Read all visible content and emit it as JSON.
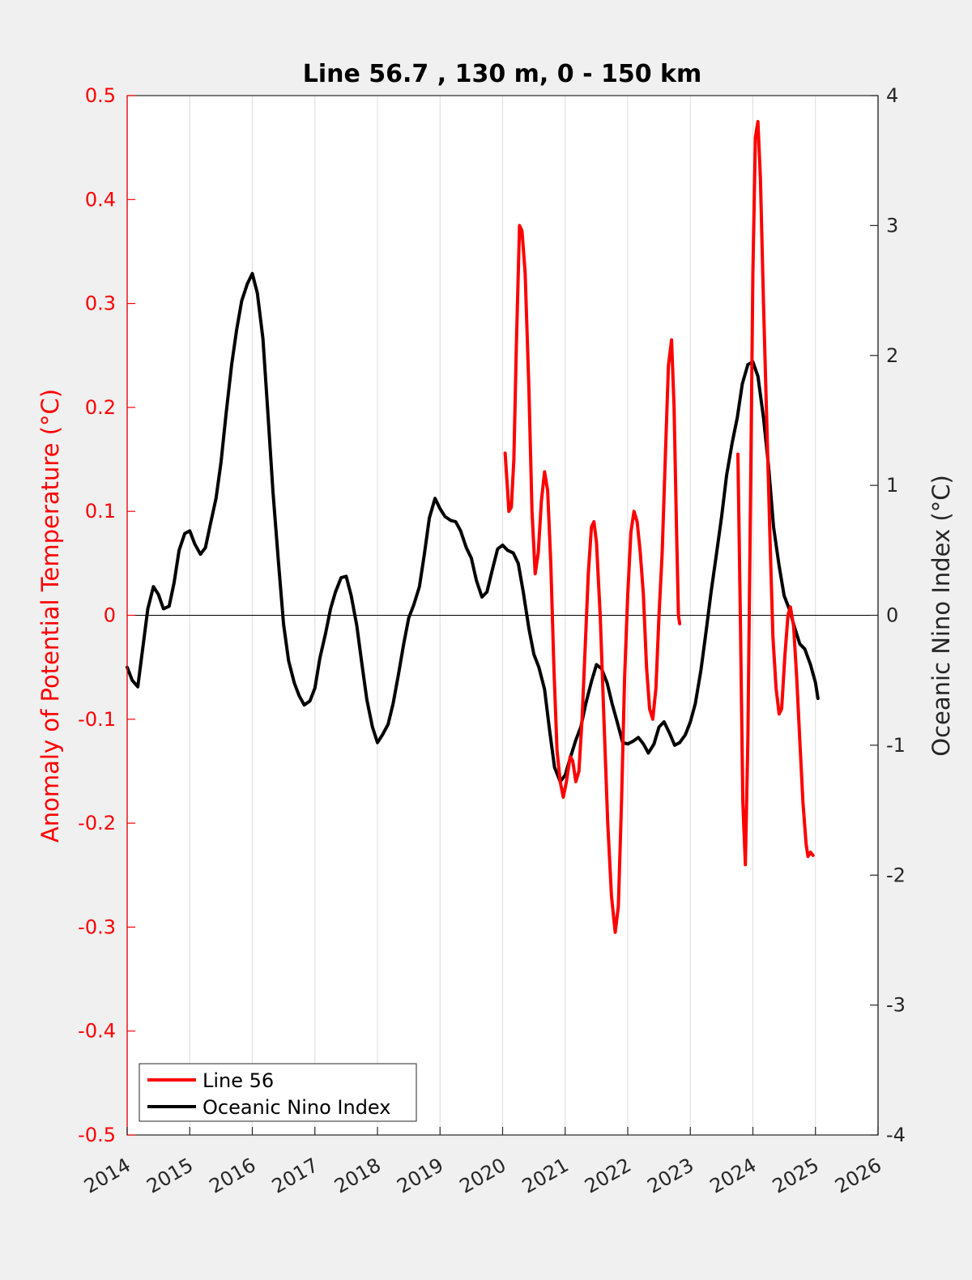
{
  "colors": {
    "background": "#f0f0f0",
    "plot_area": "#ffffff",
    "line56": "#ff0000",
    "oni": "#000000",
    "grid": "#dcdcdc",
    "left_axis": "#ff0000",
    "right_axis": "#262626"
  },
  "chart_data": {
    "type": "line",
    "title": "Line 56.7 , 130 m, 0 - 150 km",
    "xlabel": "",
    "ylabel_left": "Anomaly of Potential Temperature (°C)",
    "ylabel_right": "Oceanic Nino Index (°C)",
    "xlim": [
      2014,
      2026
    ],
    "ylim_left": [
      -0.5,
      0.5
    ],
    "ylim_right": [
      -4,
      4
    ],
    "x_ticks": [
      "2014",
      "2015",
      "2016",
      "2017",
      "2018",
      "2019",
      "2020",
      "2021",
      "2022",
      "2023",
      "2024",
      "2025",
      "2026"
    ],
    "y_ticks_left": [
      "0.5",
      "0.4",
      "0.3",
      "0.2",
      "0.1",
      "0",
      "-0.1",
      "-0.2",
      "-0.3",
      "-0.4",
      "-0.5"
    ],
    "y_ticks_right": [
      "4",
      "3",
      "2",
      "1",
      "0",
      "-1",
      "-2",
      "-3",
      "-4"
    ],
    "grid": "vertical",
    "zero_line": true,
    "legend_position": "bottom-left",
    "series": [
      {
        "name": "Line 56",
        "axis": "left",
        "color": "#ff0000",
        "segments": [
          [
            [
              2020.04,
              0.156
            ],
            [
              2020.08,
              0.12
            ],
            [
              2020.1,
              0.1
            ],
            [
              2020.14,
              0.104
            ],
            [
              2020.18,
              0.15
            ],
            [
              2020.22,
              0.26
            ],
            [
              2020.27,
              0.375
            ],
            [
              2020.31,
              0.37
            ],
            [
              2020.36,
              0.33
            ],
            [
              2020.42,
              0.22
            ],
            [
              2020.47,
              0.1
            ],
            [
              2020.52,
              0.04
            ],
            [
              2020.57,
              0.06
            ],
            [
              2020.62,
              0.11
            ],
            [
              2020.67,
              0.138
            ],
            [
              2020.72,
              0.12
            ],
            [
              2020.77,
              0.05
            ],
            [
              2020.82,
              -0.05
            ],
            [
              2020.87,
              -0.13
            ],
            [
              2020.92,
              -0.16
            ],
            [
              2020.97,
              -0.175
            ],
            [
              2021.02,
              -0.16
            ],
            [
              2021.08,
              -0.136
            ],
            [
              2021.12,
              -0.14
            ],
            [
              2021.17,
              -0.16
            ],
            [
              2021.22,
              -0.15
            ],
            [
              2021.27,
              -0.1
            ],
            [
              2021.32,
              -0.03
            ],
            [
              2021.37,
              0.04
            ],
            [
              2021.42,
              0.085
            ],
            [
              2021.46,
              0.09
            ],
            [
              2021.5,
              0.07
            ],
            [
              2021.56,
              0.0
            ],
            [
              2021.62,
              -0.1
            ],
            [
              2021.68,
              -0.2
            ],
            [
              2021.74,
              -0.27
            ],
            [
              2021.8,
              -0.305
            ],
            [
              2021.85,
              -0.28
            ],
            [
              2021.9,
              -0.18
            ],
            [
              2021.95,
              -0.06
            ],
            [
              2022.0,
              0.02
            ],
            [
              2022.05,
              0.08
            ],
            [
              2022.1,
              0.1
            ],
            [
              2022.15,
              0.09
            ],
            [
              2022.2,
              0.06
            ],
            [
              2022.25,
              0.02
            ],
            [
              2022.3,
              -0.05
            ],
            [
              2022.35,
              -0.09
            ],
            [
              2022.4,
              -0.1
            ],
            [
              2022.45,
              -0.07
            ],
            [
              2022.5,
              0.0
            ],
            [
              2022.55,
              0.06
            ],
            [
              2022.6,
              0.15
            ],
            [
              2022.65,
              0.24
            ],
            [
              2022.7,
              0.265
            ],
            [
              2022.74,
              0.2
            ],
            [
              2022.78,
              0.08
            ],
            [
              2022.81,
              0.0
            ],
            [
              2022.83,
              -0.008
            ]
          ],
          [
            [
              2023.76,
              0.155
            ],
            [
              2023.8,
              0.0
            ],
            [
              2023.84,
              -0.18
            ],
            [
              2023.88,
              -0.24
            ],
            [
              2023.92,
              -0.12
            ],
            [
              2023.96,
              0.1
            ],
            [
              2024.0,
              0.33
            ],
            [
              2024.04,
              0.46
            ],
            [
              2024.08,
              0.475
            ],
            [
              2024.12,
              0.42
            ],
            [
              2024.17,
              0.3
            ],
            [
              2024.22,
              0.19
            ],
            [
              2024.27,
              0.08
            ],
            [
              2024.32,
              -0.02
            ],
            [
              2024.37,
              -0.07
            ],
            [
              2024.42,
              -0.095
            ],
            [
              2024.46,
              -0.09
            ],
            [
              2024.51,
              -0.04
            ],
            [
              2024.56,
              0.0
            ],
            [
              2024.6,
              0.008
            ],
            [
              2024.65,
              -0.01
            ],
            [
              2024.7,
              -0.06
            ],
            [
              2024.75,
              -0.12
            ],
            [
              2024.8,
              -0.18
            ],
            [
              2024.85,
              -0.22
            ],
            [
              2024.88,
              -0.232
            ],
            [
              2024.92,
              -0.228
            ],
            [
              2024.96,
              -0.231
            ]
          ]
        ]
      },
      {
        "name": "Oceanic Nino Index",
        "axis": "right",
        "color": "#000000",
        "segments": [
          [
            [
              2014.0,
              -0.4
            ],
            [
              2014.08,
              -0.5
            ],
            [
              2014.17,
              -0.55
            ],
            [
              2014.25,
              -0.25
            ],
            [
              2014.33,
              0.05
            ],
            [
              2014.42,
              0.22
            ],
            [
              2014.5,
              0.16
            ],
            [
              2014.58,
              0.05
            ],
            [
              2014.67,
              0.07
            ],
            [
              2014.75,
              0.25
            ],
            [
              2014.83,
              0.5
            ],
            [
              2014.92,
              0.63
            ],
            [
              2015.0,
              0.65
            ],
            [
              2015.08,
              0.55
            ],
            [
              2015.17,
              0.47
            ],
            [
              2015.25,
              0.52
            ],
            [
              2015.33,
              0.7
            ],
            [
              2015.42,
              0.9
            ],
            [
              2015.5,
              1.18
            ],
            [
              2015.58,
              1.55
            ],
            [
              2015.67,
              1.93
            ],
            [
              2015.75,
              2.2
            ],
            [
              2015.83,
              2.42
            ],
            [
              2015.92,
              2.55
            ],
            [
              2016.0,
              2.63
            ],
            [
              2016.08,
              2.48
            ],
            [
              2016.17,
              2.13
            ],
            [
              2016.25,
              1.55
            ],
            [
              2016.33,
              0.95
            ],
            [
              2016.42,
              0.4
            ],
            [
              2016.5,
              -0.07
            ],
            [
              2016.58,
              -0.35
            ],
            [
              2016.67,
              -0.52
            ],
            [
              2016.75,
              -0.62
            ],
            [
              2016.83,
              -0.69
            ],
            [
              2016.92,
              -0.66
            ],
            [
              2017.0,
              -0.56
            ],
            [
              2017.08,
              -0.33
            ],
            [
              2017.17,
              -0.14
            ],
            [
              2017.25,
              0.05
            ],
            [
              2017.33,
              0.18
            ],
            [
              2017.42,
              0.29
            ],
            [
              2017.5,
              0.3
            ],
            [
              2017.58,
              0.15
            ],
            [
              2017.67,
              -0.08
            ],
            [
              2017.75,
              -0.37
            ],
            [
              2017.83,
              -0.65
            ],
            [
              2017.92,
              -0.86
            ],
            [
              2018.0,
              -0.98
            ],
            [
              2018.08,
              -0.92
            ],
            [
              2018.17,
              -0.84
            ],
            [
              2018.25,
              -0.68
            ],
            [
              2018.33,
              -0.47
            ],
            [
              2018.42,
              -0.22
            ],
            [
              2018.5,
              -0.02
            ],
            [
              2018.58,
              0.08
            ],
            [
              2018.67,
              0.22
            ],
            [
              2018.75,
              0.47
            ],
            [
              2018.83,
              0.75
            ],
            [
              2018.92,
              0.9
            ],
            [
              2019.0,
              0.82
            ],
            [
              2019.08,
              0.76
            ],
            [
              2019.17,
              0.73
            ],
            [
              2019.25,
              0.72
            ],
            [
              2019.33,
              0.65
            ],
            [
              2019.42,
              0.52
            ],
            [
              2019.5,
              0.44
            ],
            [
              2019.58,
              0.27
            ],
            [
              2019.67,
              0.14
            ],
            [
              2019.75,
              0.18
            ],
            [
              2019.83,
              0.34
            ],
            [
              2019.92,
              0.51
            ],
            [
              2020.0,
              0.54
            ],
            [
              2020.08,
              0.5
            ],
            [
              2020.17,
              0.48
            ],
            [
              2020.25,
              0.4
            ],
            [
              2020.33,
              0.18
            ],
            [
              2020.42,
              -0.1
            ],
            [
              2020.5,
              -0.3
            ],
            [
              2020.58,
              -0.4
            ],
            [
              2020.67,
              -0.57
            ],
            [
              2020.75,
              -0.88
            ],
            [
              2020.83,
              -1.17
            ],
            [
              2020.92,
              -1.28
            ],
            [
              2021.0,
              -1.23
            ],
            [
              2021.08,
              -1.1
            ],
            [
              2021.17,
              -0.96
            ],
            [
              2021.25,
              -0.86
            ],
            [
              2021.33,
              -0.68
            ],
            [
              2021.42,
              -0.51
            ],
            [
              2021.5,
              -0.38
            ],
            [
              2021.58,
              -0.41
            ],
            [
              2021.67,
              -0.52
            ],
            [
              2021.75,
              -0.68
            ],
            [
              2021.83,
              -0.82
            ],
            [
              2021.92,
              -0.98
            ],
            [
              2022.0,
              -0.99
            ],
            [
              2022.08,
              -0.97
            ],
            [
              2022.17,
              -0.94
            ],
            [
              2022.25,
              -0.99
            ],
            [
              2022.33,
              -1.06
            ],
            [
              2022.42,
              -0.99
            ],
            [
              2022.5,
              -0.86
            ],
            [
              2022.58,
              -0.82
            ],
            [
              2022.67,
              -0.91
            ],
            [
              2022.75,
              -1.0
            ],
            [
              2022.83,
              -0.98
            ],
            [
              2022.92,
              -0.92
            ],
            [
              2023.0,
              -0.82
            ],
            [
              2023.08,
              -0.68
            ],
            [
              2023.17,
              -0.42
            ],
            [
              2023.25,
              -0.13
            ],
            [
              2023.33,
              0.17
            ],
            [
              2023.42,
              0.48
            ],
            [
              2023.5,
              0.76
            ],
            [
              2023.58,
              1.08
            ],
            [
              2023.67,
              1.33
            ],
            [
              2023.75,
              1.52
            ],
            [
              2023.83,
              1.78
            ],
            [
              2023.92,
              1.93
            ],
            [
              2024.0,
              1.95
            ],
            [
              2024.08,
              1.84
            ],
            [
              2024.17,
              1.52
            ],
            [
              2024.25,
              1.15
            ],
            [
              2024.33,
              0.68
            ],
            [
              2024.42,
              0.38
            ],
            [
              2024.5,
              0.15
            ],
            [
              2024.58,
              0.05
            ],
            [
              2024.67,
              -0.1
            ],
            [
              2024.75,
              -0.22
            ],
            [
              2024.83,
              -0.26
            ],
            [
              2024.92,
              -0.38
            ],
            [
              2025.0,
              -0.52
            ],
            [
              2025.04,
              -0.64
            ]
          ]
        ]
      }
    ]
  }
}
